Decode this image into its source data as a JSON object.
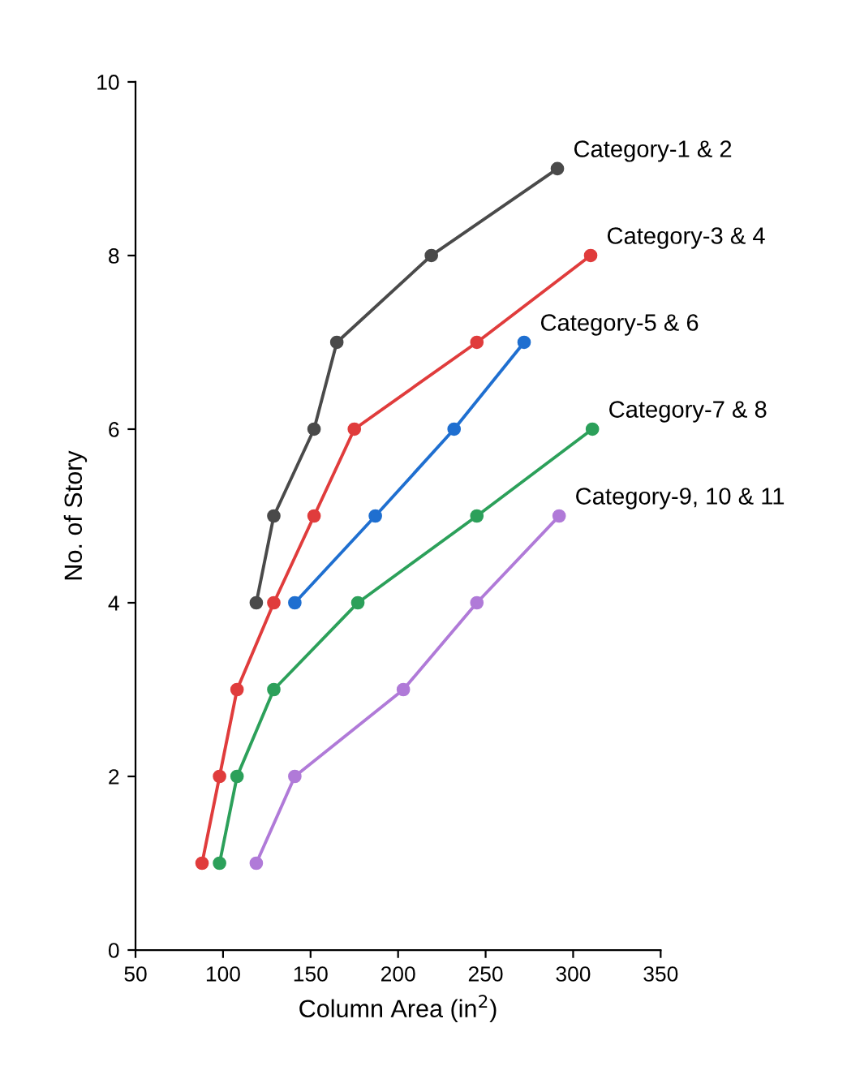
{
  "chart_data": {
    "type": "line",
    "xlabel": "Column Area (in$^{2}$)",
    "ylabel": "No. of Story",
    "xlim": [
      50,
      350
    ],
    "xticks": [
      50,
      100,
      150,
      200,
      250,
      300,
      350
    ],
    "ylim": [
      0,
      10
    ],
    "yticks": [
      0,
      2,
      4,
      6,
      8,
      10
    ],
    "marker": "circle",
    "line_style": "solid",
    "grid": false,
    "series": [
      {
        "name": "Category-1 & 2",
        "color": "#4a4a4a",
        "x": [
          119,
          129,
          152,
          165,
          219,
          291
        ],
        "values": [
          4,
          5,
          6,
          7,
          8,
          9
        ]
      },
      {
        "name": "Category-3 & 4",
        "color": "#e03c3c",
        "x": [
          88,
          98,
          108,
          129,
          152,
          175,
          245,
          310
        ],
        "values": [
          1,
          2,
          3,
          4,
          5,
          6,
          7,
          8
        ]
      },
      {
        "name": "Category-5 & 6",
        "color": "#1f6fd0",
        "x": [
          141,
          187,
          232,
          272
        ],
        "values": [
          4,
          5,
          6,
          7
        ]
      },
      {
        "name": "Category-7 & 8",
        "color": "#2ca05a",
        "x": [
          98,
          108,
          129,
          177,
          245,
          311
        ],
        "values": [
          1,
          2,
          3,
          4,
          5,
          6
        ]
      },
      {
        "name": "Category-9, 10 & 11",
        "color": "#b07ad8",
        "x": [
          119,
          141,
          203,
          245,
          292
        ],
        "values": [
          1,
          2,
          3,
          4,
          5
        ]
      }
    ]
  }
}
